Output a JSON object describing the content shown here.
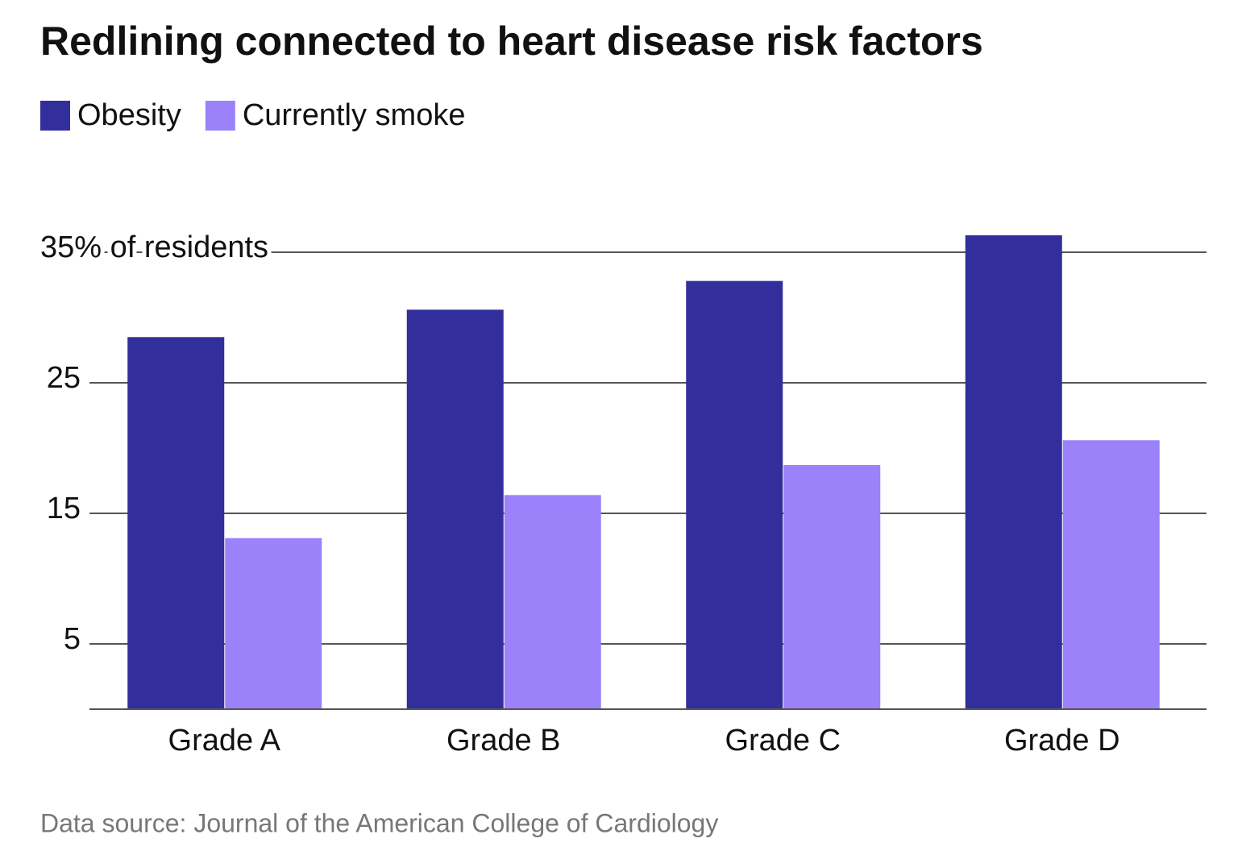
{
  "chart_data": {
    "type": "bar",
    "title": "Redlining connected to heart disease risk factors",
    "categories": [
      "Grade A",
      "Grade B",
      "Grade C",
      "Grade D"
    ],
    "series": [
      {
        "name": "Obesity",
        "color": "#322e9c",
        "values": [
          28.5,
          30.6,
          32.8,
          36.3
        ]
      },
      {
        "name": "Currently smoke",
        "color": "#9b82fa",
        "values": [
          13.1,
          16.4,
          18.7,
          20.6
        ]
      }
    ],
    "ylim": [
      0,
      37
    ],
    "yticks": [
      5,
      15,
      25,
      {
        "value": 35,
        "label": "35% of residents"
      }
    ],
    "grid": true,
    "source": "Data source: Journal of the American College of Cardiology"
  }
}
